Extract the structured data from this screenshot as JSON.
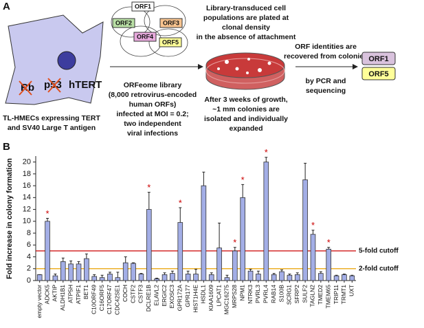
{
  "panel_a": {
    "panel_label": "A",
    "cell_labels": [
      "Rb",
      "p53",
      "hTERT"
    ],
    "cell_caption": [
      "TL-HMECs expressing TERT",
      "and SV40 Large T antigen"
    ],
    "orfs": [
      "ORF1",
      "ORF2",
      "ORF3",
      "ORF4",
      "ORF5"
    ],
    "library_caption": [
      "ORFeome library",
      "(8,000 retrovirus-encoded",
      "human ORFs)",
      "infected at MOI = 0.2;",
      "two independent",
      "viral infections"
    ],
    "plating_caption": [
      "Library-transduced cell",
      "populations are plated at",
      "clonal density",
      "in the absence of attachment"
    ],
    "growth_caption": [
      "After 3 weeks of growth,",
      "~1 mm colonies are",
      "isolated and individually",
      "expanded"
    ],
    "recovery_caption_top": [
      "ORF identities are",
      "recovered from colonies"
    ],
    "recovery_caption_bottom": [
      "by PCR and",
      "sequencing"
    ],
    "recovered": [
      "ORF1",
      "ORF5"
    ]
  },
  "chart_data": {
    "type": "bar",
    "panel_label": "B",
    "y_label": "Fold increase in colony formation",
    "categories": [
      "empty vector",
      "ADCK5",
      "AKTIP",
      "ALDH1B1",
      "ATP5H",
      "ATPIF1",
      "BET1",
      "C10ORF49",
      "C16ORF5",
      "C17ORF47",
      "CDC42SE1",
      "COCH",
      "CSTF2",
      "CSTF3",
      "DCLRE1B",
      "ELAVL2",
      "ERGIC2",
      "EXOSC3",
      "GPR172A",
      "GPR177",
      "HIST1H4E",
      "HSDL1",
      "KIAA1609",
      "LPCAT1",
      "MGC16275",
      "MRPS28",
      "NPM1",
      "NTRK3",
      "PVRL3",
      "PVRL4",
      "RAB14",
      "S100B",
      "SCRG1",
      "SFRP2",
      "SULF2",
      "TAGLN2",
      "TMED2",
      "TMEM65",
      "TRIP11",
      "TRMT1",
      "UXT"
    ],
    "values": [
      1,
      10,
      0.8,
      3.2,
      2.8,
      2.8,
      3.7,
      0.7,
      0.5,
      1.1,
      0.5,
      3,
      2.9,
      1.1,
      12,
      0.3,
      1,
      1.2,
      9.8,
      1.1,
      1.1,
      16,
      1,
      5.5,
      0.5,
      5,
      14,
      1.6,
      1.1,
      20,
      1,
      1.5,
      0.9,
      1,
      17,
      7.8,
      1.2,
      5.3,
      0.8,
      1,
      0.8
    ],
    "errors": [
      0,
      0.5,
      0.3,
      0.6,
      0.5,
      0.4,
      0.8,
      0.3,
      0.4,
      0.3,
      0.9,
      1,
      0.1,
      0.1,
      2.9,
      0.1,
      0.3,
      0.4,
      2.5,
      0.5,
      0.8,
      2.3,
      0.3,
      4.2,
      0.4,
      0.6,
      2.2,
      0.3,
      0.5,
      0.8,
      0.2,
      0.3,
      0.2,
      0.3,
      2.8,
      0.7,
      0.3,
      0.3,
      0.1,
      0.1,
      0.1
    ],
    "significant": [
      false,
      true,
      false,
      false,
      false,
      false,
      false,
      false,
      false,
      false,
      false,
      false,
      false,
      false,
      true,
      false,
      false,
      false,
      true,
      false,
      false,
      false,
      false,
      false,
      false,
      true,
      true,
      false,
      false,
      true,
      false,
      false,
      false,
      false,
      false,
      true,
      false,
      true,
      false,
      false,
      false
    ],
    "significance_symbol": "*",
    "color": "#a3aee6",
    "ylim": [
      0,
      21
    ],
    "yticks": [
      0,
      2,
      4,
      6,
      8,
      10,
      12,
      14,
      16,
      18,
      20
    ],
    "cutoffs": [
      {
        "value": 5,
        "label": "5-fold cutoff",
        "color": "#cc0000"
      },
      {
        "value": 2,
        "label": "2-fold cutoff",
        "color": "#e8a000"
      }
    ]
  }
}
